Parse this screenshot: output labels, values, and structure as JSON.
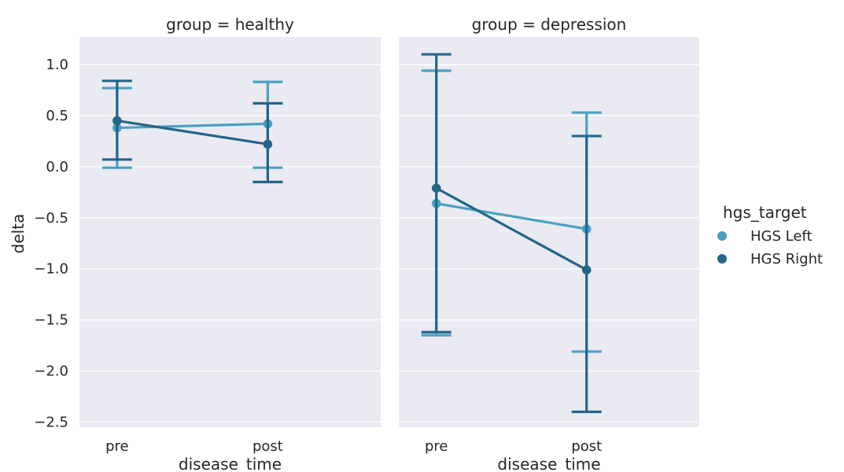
{
  "chart_data": {
    "type": "line",
    "xlabel": "disease_time",
    "ylabel": "delta",
    "categories": [
      "pre",
      "post"
    ],
    "ylim": [
      -2.55,
      1.27
    ],
    "yticks": [
      1.0,
      0.5,
      0.0,
      -0.5,
      -1.0,
      -1.5,
      -2.0,
      -2.5
    ],
    "ytick_labels": [
      "1.0",
      "0.5",
      "0.0",
      "−0.5",
      "−1.0",
      "−1.5",
      "−2.0",
      "−2.5"
    ],
    "legend": {
      "title": "hgs_target",
      "placement": "right",
      "entries": [
        "HGS Left",
        "HGS Right"
      ]
    },
    "colors": {
      "HGS Left": "#4aa0c0",
      "HGS Right": "#246589"
    },
    "panels": [
      {
        "title": "group = healthy",
        "series": [
          {
            "name": "HGS Left",
            "values": [
              0.38,
              0.42
            ],
            "ci_low": [
              -0.01,
              -0.01
            ],
            "ci_high": [
              0.77,
              0.83
            ]
          },
          {
            "name": "HGS Right",
            "values": [
              0.45,
              0.22
            ],
            "ci_low": [
              0.07,
              -0.15
            ],
            "ci_high": [
              0.84,
              0.62
            ]
          }
        ]
      },
      {
        "title": "group = depression",
        "series": [
          {
            "name": "HGS Left",
            "values": [
              -0.36,
              -0.61
            ],
            "ci_low": [
              -1.65,
              -1.81
            ],
            "ci_high": [
              0.94,
              0.53
            ]
          },
          {
            "name": "HGS Right",
            "values": [
              -0.21,
              -1.01
            ],
            "ci_low": [
              -1.62,
              -2.4
            ],
            "ci_high": [
              1.1,
              0.3
            ]
          }
        ]
      }
    ]
  }
}
